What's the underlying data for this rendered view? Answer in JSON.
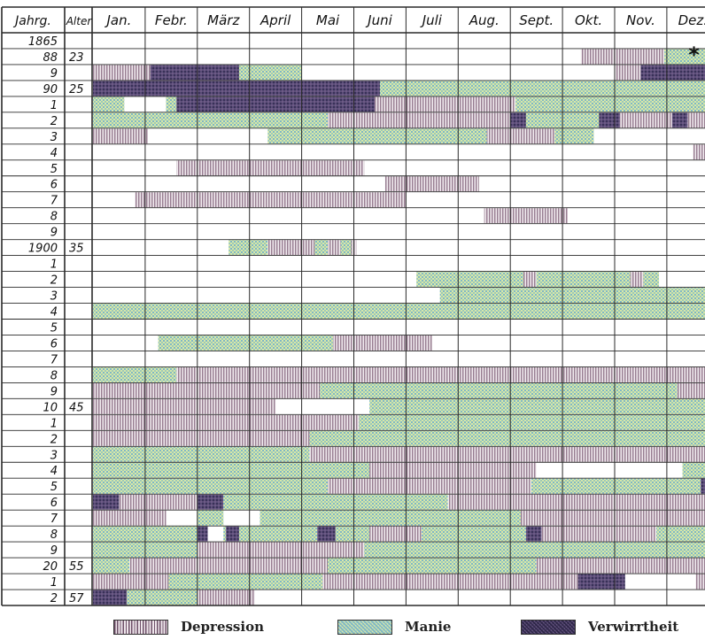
{
  "chart_data": {
    "type": "table",
    "header": {
      "year": "Jahrg.",
      "age": "Alter",
      "months": [
        "Jan.",
        "Febr.",
        "März",
        "April",
        "Mai",
        "Juni",
        "Juli",
        "Aug.",
        "Sept.",
        "Okt.",
        "Nov.",
        "Dez."
      ]
    },
    "rows": [
      {
        "year": "1865",
        "age": "",
        "segments": []
      },
      {
        "year": "88",
        "age": "23",
        "segments": [
          {
            "type": "D",
            "start": 9.35,
            "end": 10.95
          },
          {
            "type": "M",
            "start": 10.95,
            "end": 12
          }
        ]
      },
      {
        "year": "9",
        "age": "",
        "segments": [
          {
            "type": "D",
            "start": 0,
            "end": 1.1
          },
          {
            "type": "V",
            "start": 1.1,
            "end": 2.8
          },
          {
            "type": "M",
            "start": 2.8,
            "end": 4
          },
          {
            "type": "D",
            "start": 10.0,
            "end": 10.5
          },
          {
            "type": "V",
            "start": 10.5,
            "end": 12
          }
        ]
      },
      {
        "year": "90",
        "age": "25",
        "segments": [
          {
            "type": "V",
            "start": 0,
            "end": 5.5
          },
          {
            "type": "M",
            "start": 5.5,
            "end": 12
          }
        ]
      },
      {
        "year": "1",
        "age": "",
        "segments": [
          {
            "type": "M",
            "start": 0,
            "end": 0.6
          },
          {
            "type": "M",
            "start": 1.4,
            "end": 1.6
          },
          {
            "type": "V",
            "start": 1.6,
            "end": 5.4
          },
          {
            "type": "D",
            "start": 5.4,
            "end": 8.1
          },
          {
            "type": "M",
            "start": 8.1,
            "end": 12
          }
        ]
      },
      {
        "year": "2",
        "age": "",
        "segments": [
          {
            "type": "M",
            "start": 0,
            "end": 4.5
          },
          {
            "type": "D",
            "start": 4.5,
            "end": 8.0
          },
          {
            "type": "V",
            "start": 8.0,
            "end": 8.3
          },
          {
            "type": "M",
            "start": 8.3,
            "end": 9.7
          },
          {
            "type": "V",
            "start": 9.7,
            "end": 10.1
          },
          {
            "type": "D",
            "start": 10.1,
            "end": 11.1
          },
          {
            "type": "V",
            "start": 11.1,
            "end": 11.4
          },
          {
            "type": "D",
            "start": 11.4,
            "end": 12
          }
        ]
      },
      {
        "year": "3",
        "age": "",
        "segments": [
          {
            "type": "D",
            "start": 0,
            "end": 1.05
          },
          {
            "type": "M",
            "start": 3.35,
            "end": 7.55
          },
          {
            "type": "D",
            "start": 7.55,
            "end": 8.85
          },
          {
            "type": "M",
            "start": 8.85,
            "end": 9.6
          }
        ]
      },
      {
        "year": "4",
        "age": "",
        "segments": [
          {
            "type": "D",
            "start": 11.5,
            "end": 12
          }
        ]
      },
      {
        "year": "5",
        "age": "",
        "segments": [
          {
            "type": "D",
            "start": 1.6,
            "end": 5.2
          }
        ]
      },
      {
        "year": "6",
        "age": "",
        "segments": [
          {
            "type": "D",
            "start": 5.6,
            "end": 7.4
          }
        ]
      },
      {
        "year": "7",
        "age": "",
        "segments": [
          {
            "type": "D",
            "start": 0.8,
            "end": 6.0
          }
        ]
      },
      {
        "year": "8",
        "age": "",
        "segments": [
          {
            "type": "D",
            "start": 7.5,
            "end": 9.1
          }
        ]
      },
      {
        "year": "9",
        "age": "",
        "segments": []
      },
      {
        "year": "1900",
        "age": "35",
        "segments": [
          {
            "type": "M",
            "start": 2.6,
            "end": 3.35
          },
          {
            "type": "D",
            "start": 3.35,
            "end": 4.25
          },
          {
            "type": "M",
            "start": 4.25,
            "end": 4.5
          },
          {
            "type": "D",
            "start": 4.5,
            "end": 4.75
          },
          {
            "type": "M",
            "start": 4.75,
            "end": 4.95
          },
          {
            "type": "D",
            "start": 4.95,
            "end": 5.05
          }
        ]
      },
      {
        "year": "1",
        "age": "",
        "segments": []
      },
      {
        "year": "2",
        "age": "",
        "segments": [
          {
            "type": "M",
            "start": 6.2,
            "end": 8.25
          },
          {
            "type": "D",
            "start": 8.25,
            "end": 8.5
          },
          {
            "type": "M",
            "start": 8.5,
            "end": 10.3
          },
          {
            "type": "D",
            "start": 10.3,
            "end": 10.55
          },
          {
            "type": "M",
            "start": 10.55,
            "end": 10.85
          }
        ]
      },
      {
        "year": "3",
        "age": "",
        "segments": [
          {
            "type": "M",
            "start": 6.65,
            "end": 12
          }
        ]
      },
      {
        "year": "4",
        "age": "",
        "segments": [
          {
            "type": "M",
            "start": 0,
            "end": 12
          }
        ]
      },
      {
        "year": "5",
        "age": "",
        "segments": []
      },
      {
        "year": "6",
        "age": "",
        "segments": [
          {
            "type": "M",
            "start": 1.25,
            "end": 4.6
          },
          {
            "type": "D",
            "start": 4.6,
            "end": 6.5
          }
        ]
      },
      {
        "year": "7",
        "age": "",
        "segments": []
      },
      {
        "year": "8",
        "age": "",
        "segments": [
          {
            "type": "M",
            "start": 0,
            "end": 1.6
          },
          {
            "type": "D",
            "start": 1.6,
            "end": 12
          }
        ]
      },
      {
        "year": "9",
        "age": "",
        "segments": [
          {
            "type": "D",
            "start": 0,
            "end": 4.35
          },
          {
            "type": "M",
            "start": 4.35,
            "end": 11.2
          },
          {
            "type": "D",
            "start": 11.2,
            "end": 12
          }
        ]
      },
      {
        "year": "10",
        "age": "45",
        "segments": [
          {
            "type": "D",
            "start": 0,
            "end": 3.5
          },
          {
            "type": "M",
            "start": 5.3,
            "end": 12
          }
        ]
      },
      {
        "year": "1",
        "age": "",
        "segments": [
          {
            "type": "D",
            "start": 0,
            "end": 5.1
          },
          {
            "type": "M",
            "start": 5.1,
            "end": 12
          }
        ]
      },
      {
        "year": "2",
        "age": "",
        "segments": [
          {
            "type": "D",
            "start": 0,
            "end": 4.15
          },
          {
            "type": "M",
            "start": 4.15,
            "end": 12
          }
        ]
      },
      {
        "year": "3",
        "age": "",
        "segments": [
          {
            "type": "M",
            "start": 0,
            "end": 4.15
          },
          {
            "type": "D",
            "start": 4.15,
            "end": 12
          }
        ]
      },
      {
        "year": "4",
        "age": "",
        "segments": [
          {
            "type": "M",
            "start": 0,
            "end": 5.3
          },
          {
            "type": "D",
            "start": 5.3,
            "end": 8.5
          },
          {
            "type": "M",
            "start": 11.3,
            "end": 12
          }
        ]
      },
      {
        "year": "5",
        "age": "",
        "segments": [
          {
            "type": "M",
            "start": 0,
            "end": 4.5
          },
          {
            "type": "D",
            "start": 4.5,
            "end": 8.4
          },
          {
            "type": "M",
            "start": 8.4,
            "end": 11.65
          },
          {
            "type": "V",
            "start": 11.65,
            "end": 12
          }
        ]
      },
      {
        "year": "6",
        "age": "",
        "segments": [
          {
            "type": "V",
            "start": 0,
            "end": 0.5
          },
          {
            "type": "D",
            "start": 0.5,
            "end": 2.0
          },
          {
            "type": "V",
            "start": 2.0,
            "end": 2.5
          },
          {
            "type": "M",
            "start": 2.5,
            "end": 6.8
          },
          {
            "type": "D",
            "start": 6.8,
            "end": 12
          }
        ]
      },
      {
        "year": "7",
        "age": "",
        "segments": [
          {
            "type": "D",
            "start": 0,
            "end": 1.4
          },
          {
            "type": "M",
            "start": 2.0,
            "end": 2.5
          },
          {
            "type": "M",
            "start": 3.2,
            "end": 8.2
          },
          {
            "type": "D",
            "start": 8.2,
            "end": 12
          }
        ]
      },
      {
        "year": "8",
        "age": "",
        "segments": [
          {
            "type": "M",
            "start": 0,
            "end": 2.0
          },
          {
            "type": "V",
            "start": 2.0,
            "end": 2.2
          },
          {
            "type": "M",
            "start": 2.5,
            "end": 2.55
          },
          {
            "type": "V",
            "start": 2.55,
            "end": 2.8
          },
          {
            "type": "M",
            "start": 2.8,
            "end": 4.3
          },
          {
            "type": "V",
            "start": 4.3,
            "end": 4.65
          },
          {
            "type": "M",
            "start": 4.65,
            "end": 5.3
          },
          {
            "type": "D",
            "start": 5.3,
            "end": 6.3
          },
          {
            "type": "M",
            "start": 6.3,
            "end": 8.3
          },
          {
            "type": "V",
            "start": 8.3,
            "end": 8.6
          },
          {
            "type": "D",
            "start": 8.6,
            "end": 10.8
          },
          {
            "type": "M",
            "start": 10.8,
            "end": 12
          }
        ]
      },
      {
        "year": "9",
        "age": "",
        "segments": [
          {
            "type": "M",
            "start": 0,
            "end": 2.0
          },
          {
            "type": "D",
            "start": 2.0,
            "end": 5.2
          },
          {
            "type": "M",
            "start": 5.2,
            "end": 12
          }
        ]
      },
      {
        "year": "20",
        "age": "55",
        "segments": [
          {
            "type": "M",
            "start": 0,
            "end": 0.7
          },
          {
            "type": "D",
            "start": 0.7,
            "end": 4.5
          },
          {
            "type": "M",
            "start": 4.5,
            "end": 8.5
          },
          {
            "type": "D",
            "start": 8.5,
            "end": 12
          }
        ]
      },
      {
        "year": "1",
        "age": "",
        "segments": [
          {
            "type": "D",
            "start": 0,
            "end": 1.45
          },
          {
            "type": "M",
            "start": 1.45,
            "end": 4.4
          },
          {
            "type": "D",
            "start": 4.4,
            "end": 9.3
          },
          {
            "type": "V",
            "start": 9.3,
            "end": 10.2
          },
          {
            "type": "D",
            "start": 11.55,
            "end": 12
          }
        ]
      },
      {
        "year": "2",
        "age": "57",
        "segments": [
          {
            "type": "V",
            "start": 0,
            "end": 0.65
          },
          {
            "type": "M",
            "start": 0.65,
            "end": 2.0
          },
          {
            "type": "D",
            "start": 2.0,
            "end": 3.1
          }
        ]
      }
    ],
    "annotation": {
      "text": "*",
      "row": 1,
      "month": 11.35
    },
    "legend": [
      {
        "key": "D",
        "label": "Depression"
      },
      {
        "key": "M",
        "label": "Manie"
      },
      {
        "key": "V",
        "label": "Verwirrtheit"
      }
    ],
    "colors": {
      "depression_stroke": "#7a5a72",
      "mania_a": "#7fb7c6",
      "mania_b": "#d8e8a8",
      "confusion": "#4a3f68",
      "grid": "#2a2a2a",
      "text": "#111111"
    }
  }
}
